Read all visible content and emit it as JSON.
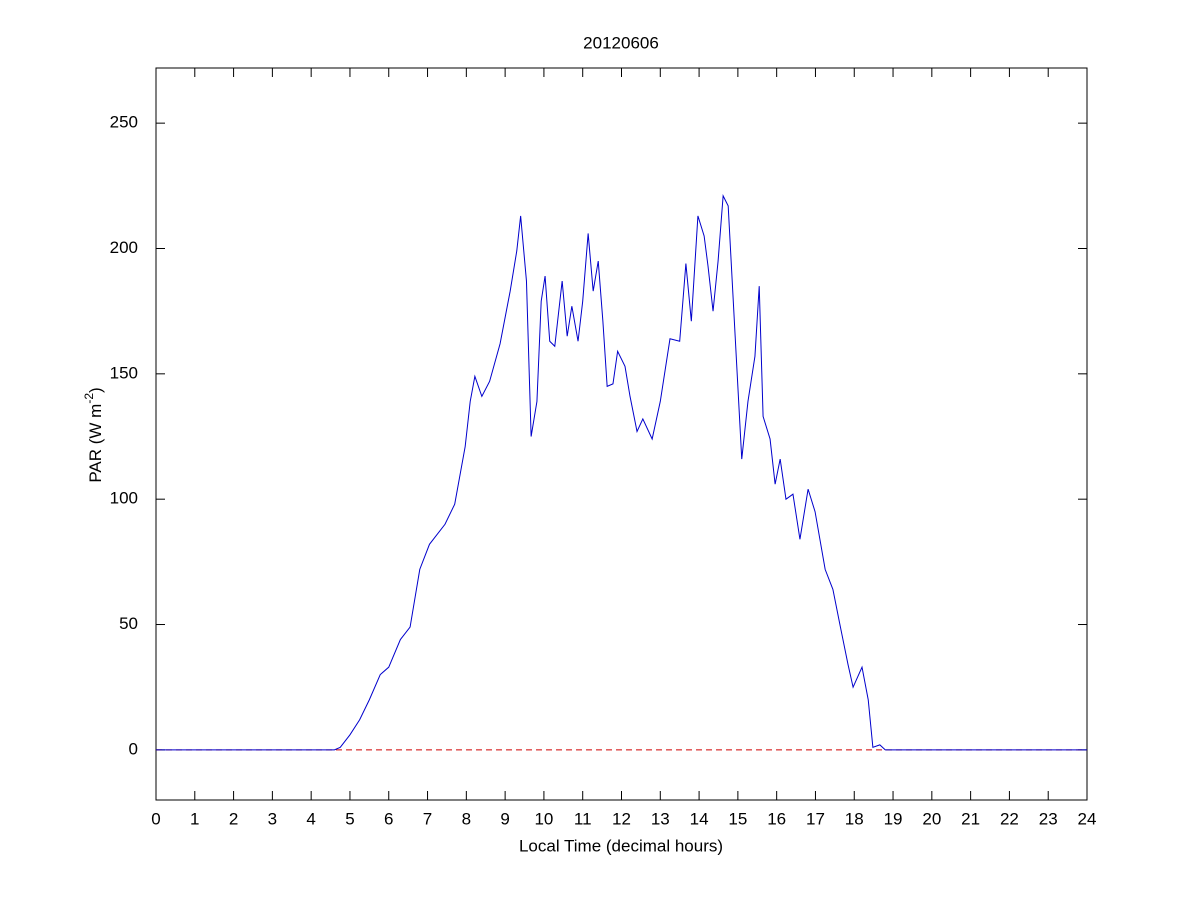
{
  "chart_data": {
    "type": "line",
    "title": "20120606",
    "x_label": "Local Time (decimal hours)",
    "y_label": {
      "text": "PAR (W m",
      "superscript": "-2",
      "after": ")"
    },
    "x": [
      0,
      4.6,
      4.75,
      5.0,
      5.25,
      5.5,
      5.78,
      6.0,
      6.3,
      6.55,
      6.8,
      7.05,
      7.45,
      7.7,
      7.97,
      8.1,
      8.22,
      8.4,
      8.6,
      8.87,
      9.13,
      9.3,
      9.4,
      9.55,
      9.67,
      9.82,
      9.93,
      10.03,
      10.15,
      10.28,
      10.47,
      10.6,
      10.72,
      10.88,
      11.0,
      11.14,
      11.27,
      11.4,
      11.52,
      11.63,
      11.78,
      11.9,
      12.09,
      12.22,
      12.4,
      12.55,
      12.79,
      13.0,
      13.25,
      13.5,
      13.66,
      13.8,
      13.97,
      14.13,
      14.23,
      14.36,
      14.49,
      14.62,
      14.75,
      14.93,
      15.1,
      15.26,
      15.44,
      15.55,
      15.65,
      15.83,
      15.96,
      16.09,
      16.24,
      16.42,
      16.6,
      16.81,
      16.99,
      17.25,
      17.45,
      17.63,
      17.84,
      17.97,
      18.2,
      18.36,
      18.48,
      18.66,
      18.8,
      24
    ],
    "values": [
      0,
      0,
      1,
      6,
      12,
      20,
      30,
      33,
      44,
      49,
      72,
      82,
      90,
      98,
      121,
      139,
      149,
      141,
      147,
      162,
      183,
      199,
      213,
      187,
      125,
      139,
      179,
      189,
      163,
      161,
      187,
      165,
      177,
      163,
      179,
      206,
      183,
      195,
      171,
      145,
      146,
      159,
      153,
      141,
      127,
      132,
      124,
      139,
      164,
      163,
      194,
      171,
      213,
      205,
      193,
      175,
      195,
      221,
      217,
      165,
      116,
      139,
      157,
      185,
      133,
      124,
      106,
      116,
      100,
      102,
      84,
      104,
      95,
      72,
      64,
      50,
      34,
      25,
      33,
      20,
      1,
      2,
      0,
      0
    ],
    "color": "#0000cc",
    "reference_line": {
      "y": 0,
      "color": "#d00000",
      "style": "dashed"
    },
    "xlim": [
      0,
      24
    ],
    "xticks": [
      0,
      1,
      2,
      3,
      4,
      5,
      6,
      7,
      8,
      9,
      10,
      11,
      12,
      13,
      14,
      15,
      16,
      17,
      18,
      19,
      20,
      21,
      22,
      23,
      24
    ],
    "ylim": [
      -20,
      272
    ],
    "yticks": [
      0,
      50,
      100,
      150,
      200,
      250
    ]
  }
}
